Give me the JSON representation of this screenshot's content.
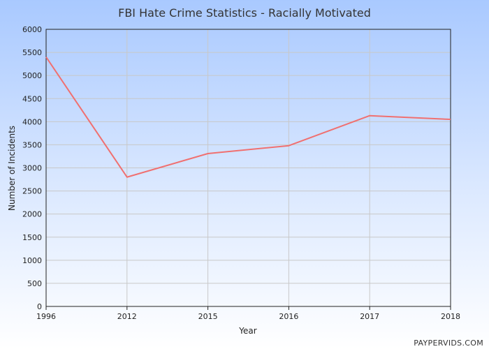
{
  "chart_data": {
    "type": "line",
    "title": "FBI Hate Crime Statistics - Racially Motivated",
    "xlabel": "Year",
    "ylabel": "Number of Incidents",
    "categories": [
      "1996",
      "2012",
      "2015",
      "2016",
      "2017",
      "2018"
    ],
    "series": [
      {
        "values": [
          5400,
          2800,
          3310,
          3480,
          4130,
          4050
        ],
        "color": "#f07070"
      }
    ],
    "ylim": [
      0,
      6000
    ],
    "yticks": [
      "0",
      "500",
      "1000",
      "1500",
      "2000",
      "2500",
      "3000",
      "3500",
      "4000",
      "4500",
      "5000",
      "5500",
      "6000"
    ],
    "grid": true,
    "legend": "none"
  },
  "credit": "PAYPERVIDS.COM",
  "colors": {
    "grid": "#c8c8c8",
    "axis": "#222222",
    "line": "#f07070"
  }
}
